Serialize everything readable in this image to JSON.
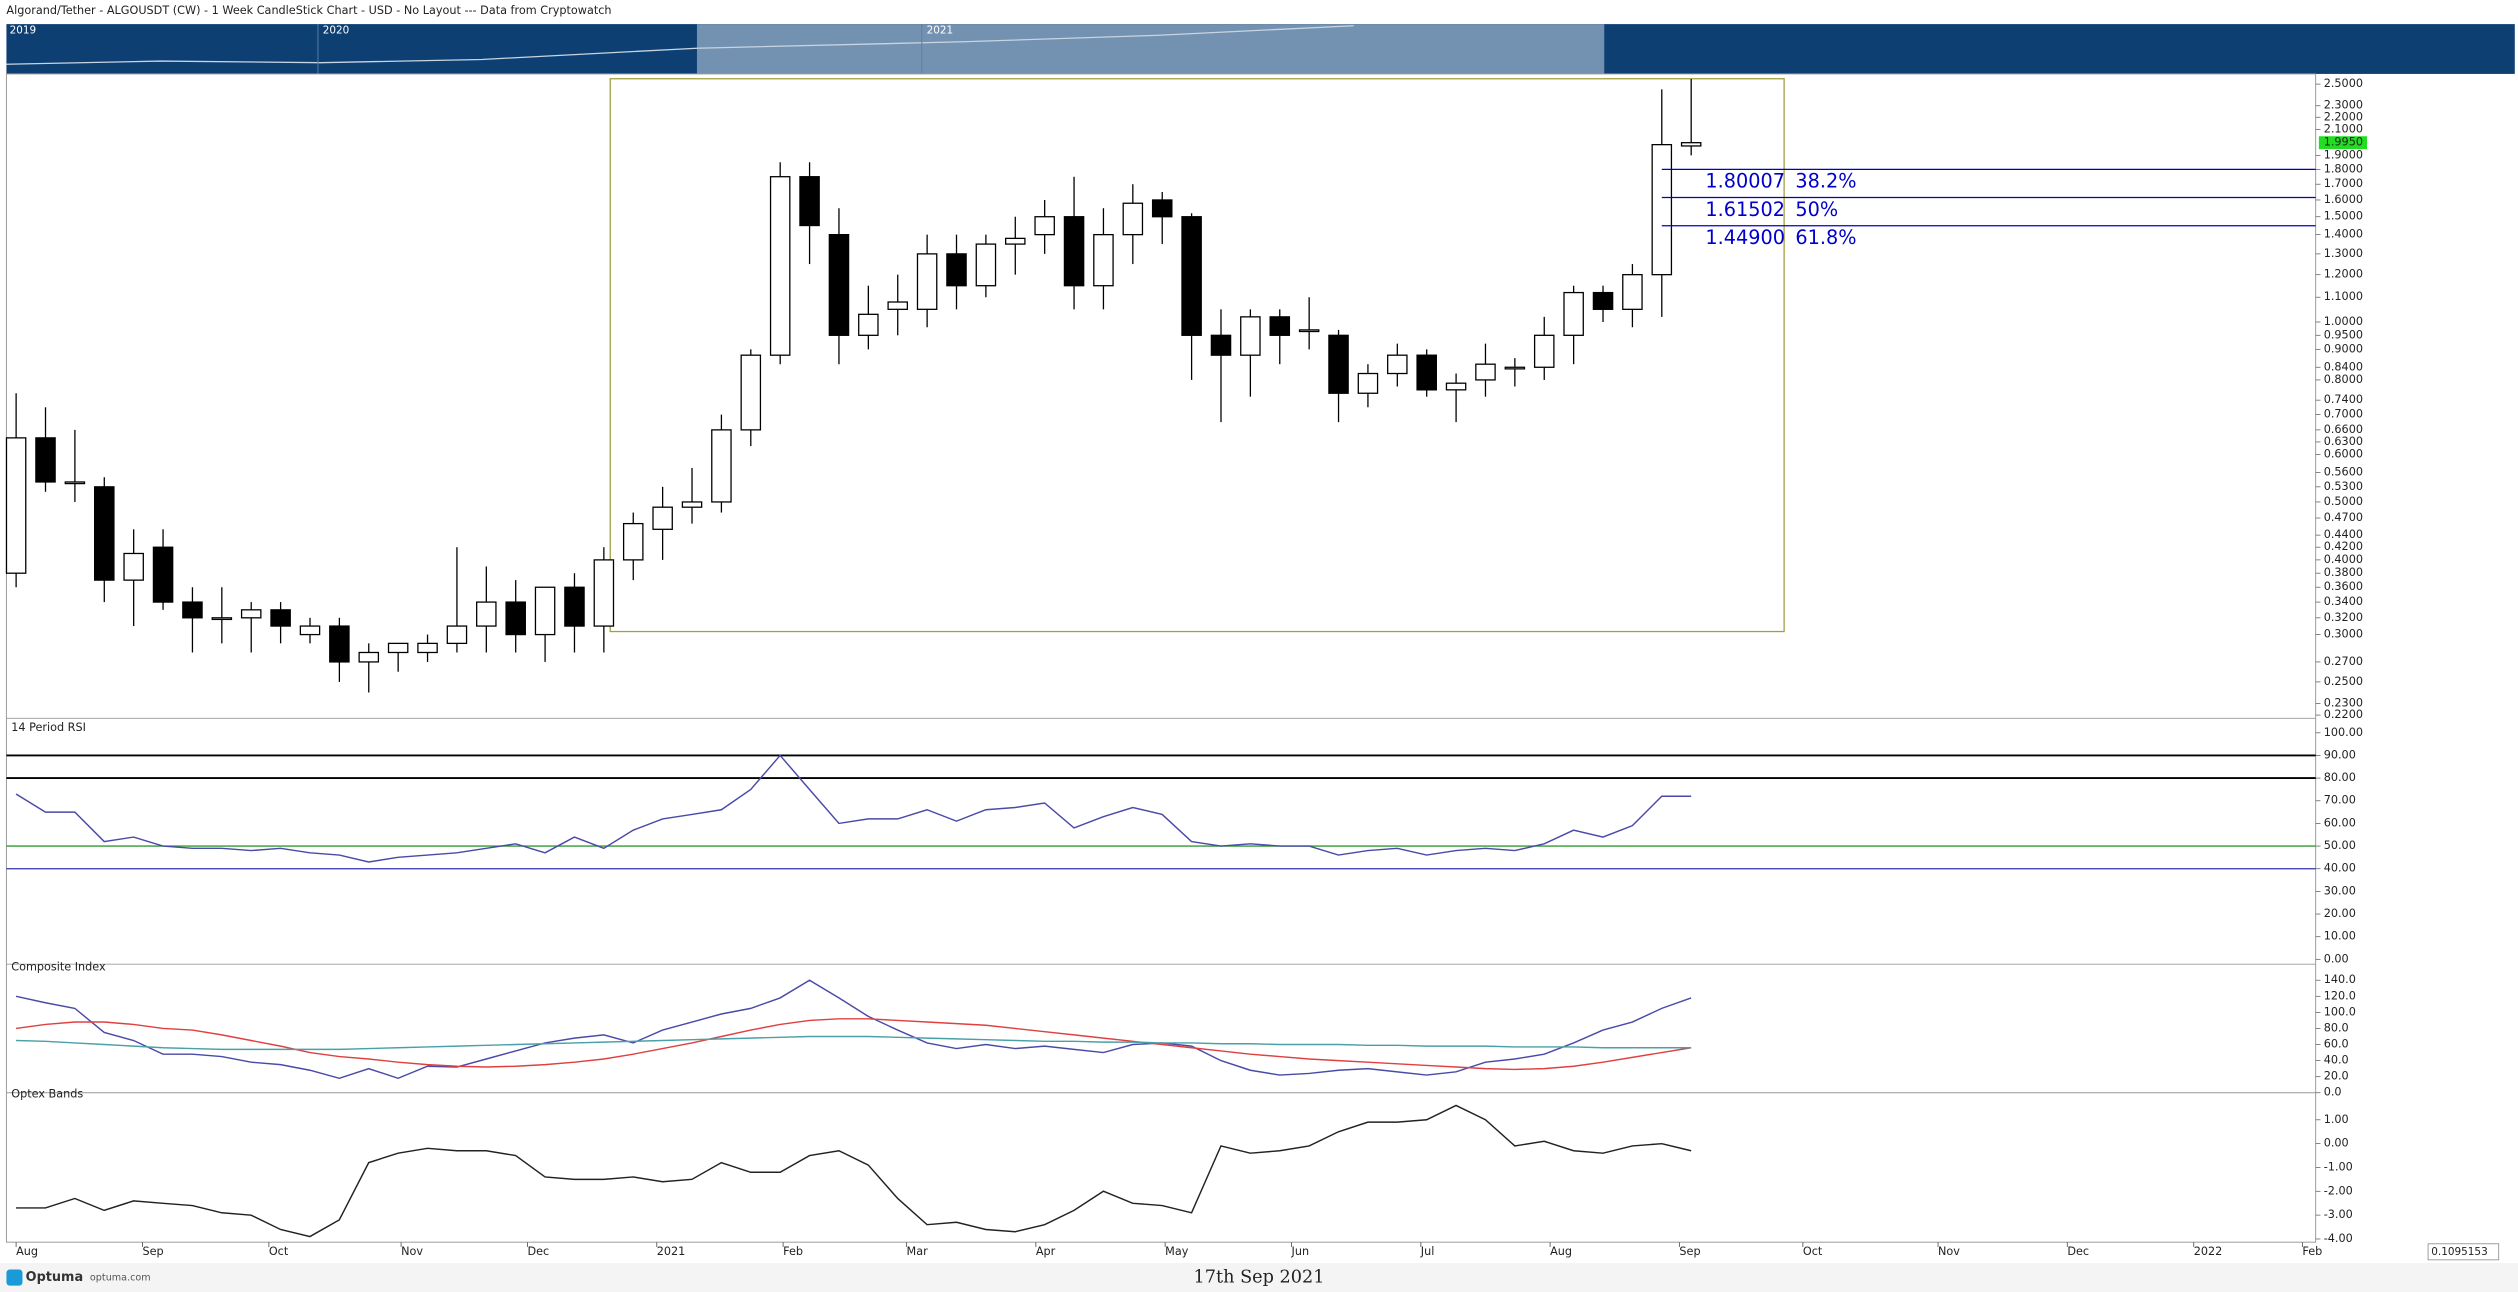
{
  "header": {
    "title": "Algorand/Tether - ALGOUSDT (CW) - 1 Week CandleStick Chart - USD - No Layout --- Data from Cryptowatch",
    "navigator_years": [
      "2019",
      "2020",
      "2021"
    ]
  },
  "chart_data": [
    {
      "type": "candlestick",
      "x": [
        0,
        1,
        2,
        3,
        4,
        5,
        6,
        7,
        8,
        9,
        10,
        11,
        12,
        13,
        14,
        15,
        16,
        17,
        18,
        19,
        20,
        21,
        22,
        23,
        24,
        25,
        26,
        27,
        28,
        29,
        30,
        31,
        32,
        33,
        34,
        35,
        36,
        37,
        38,
        39,
        40,
        41,
        42,
        43,
        44,
        45,
        46,
        47,
        48,
        49,
        50,
        51,
        52,
        53,
        54,
        55,
        56,
        57
      ],
      "open": [
        0.38,
        0.64,
        0.54,
        0.53,
        0.37,
        0.42,
        0.34,
        0.32,
        0.32,
        0.33,
        0.3,
        0.31,
        0.27,
        0.28,
        0.28,
        0.29,
        0.31,
        0.34,
        0.3,
        0.36,
        0.31,
        0.4,
        0.45,
        0.49,
        0.5,
        0.66,
        0.88,
        1.75,
        1.4,
        0.95,
        1.05,
        1.05,
        1.3,
        1.15,
        1.35,
        1.4,
        1.5,
        1.15,
        1.4,
        1.6,
        1.5,
        0.95,
        0.88,
        1.02,
        0.97,
        0.95,
        0.76,
        0.82,
        0.88,
        0.77,
        0.8,
        0.84,
        0.84,
        0.95,
        1.12,
        1.05,
        1.2,
        1.97
      ],
      "high": [
        0.76,
        0.72,
        0.66,
        0.55,
        0.45,
        0.45,
        0.36,
        0.36,
        0.34,
        0.34,
        0.32,
        0.32,
        0.29,
        0.29,
        0.3,
        0.42,
        0.39,
        0.37,
        0.36,
        0.38,
        0.42,
        0.48,
        0.53,
        0.57,
        0.7,
        0.9,
        1.85,
        1.85,
        1.55,
        1.15,
        1.2,
        1.4,
        1.4,
        1.4,
        1.5,
        1.6,
        1.75,
        1.55,
        1.7,
        1.65,
        1.52,
        1.05,
        1.05,
        1.05,
        1.1,
        0.97,
        0.85,
        0.92,
        0.9,
        0.82,
        0.92,
        0.87,
        1.02,
        1.15,
        1.15,
        1.25,
        2.45,
        2.55
      ],
      "low": [
        0.36,
        0.52,
        0.5,
        0.34,
        0.31,
        0.33,
        0.28,
        0.29,
        0.28,
        0.29,
        0.29,
        0.25,
        0.24,
        0.26,
        0.27,
        0.28,
        0.28,
        0.28,
        0.27,
        0.28,
        0.28,
        0.37,
        0.4,
        0.46,
        0.48,
        0.62,
        0.85,
        1.25,
        0.85,
        0.9,
        0.95,
        0.98,
        1.05,
        1.1,
        1.2,
        1.3,
        1.05,
        1.05,
        1.25,
        1.35,
        0.8,
        0.68,
        0.75,
        0.85,
        0.9,
        0.68,
        0.72,
        0.78,
        0.75,
        0.68,
        0.75,
        0.78,
        0.8,
        0.85,
        1.0,
        0.98,
        1.02,
        1.9
      ],
      "close": [
        0.64,
        0.54,
        0.54,
        0.37,
        0.41,
        0.34,
        0.32,
        0.32,
        0.33,
        0.31,
        0.31,
        0.27,
        0.28,
        0.29,
        0.29,
        0.31,
        0.34,
        0.3,
        0.36,
        0.31,
        0.4,
        0.46,
        0.49,
        0.5,
        0.66,
        0.88,
        1.75,
        1.45,
        0.95,
        1.03,
        1.08,
        1.3,
        1.15,
        1.35,
        1.38,
        1.5,
        1.15,
        1.4,
        1.58,
        1.5,
        0.95,
        0.88,
        1.02,
        0.95,
        0.97,
        0.76,
        0.82,
        0.88,
        0.77,
        0.79,
        0.85,
        0.84,
        0.95,
        1.12,
        1.05,
        1.2,
        1.98,
        1.995
      ],
      "up_color": "#ffffff",
      "down_color": "#000000",
      "ylim": [
        0.22,
        2.6
      ],
      "log_y": true,
      "yticks": [
        {
          "value": 2.5,
          "label": "2.5000"
        },
        {
          "value": 2.3,
          "label": "2.3000"
        },
        {
          "value": 2.2,
          "label": "2.2000"
        },
        {
          "value": 2.1,
          "label": "2.1000"
        },
        {
          "value": 1.9,
          "label": "1.9000"
        },
        {
          "value": 1.8,
          "label": "1.8000"
        },
        {
          "value": 1.7,
          "label": "1.7000"
        },
        {
          "value": 1.6,
          "label": "1.6000"
        },
        {
          "value": 1.5,
          "label": "1.5000"
        },
        {
          "value": 1.4,
          "label": "1.4000"
        },
        {
          "value": 1.3,
          "label": "1.3000"
        },
        {
          "value": 1.2,
          "label": "1.2000"
        },
        {
          "value": 1.1,
          "label": "1.1000"
        },
        {
          "value": 1.0,
          "label": "1.0000"
        },
        {
          "value": 0.95,
          "label": "0.9500"
        },
        {
          "value": 0.9,
          "label": "0.9000"
        },
        {
          "value": 0.84,
          "label": "0.8400"
        },
        {
          "value": 0.8,
          "label": "0.8000"
        },
        {
          "value": 0.74,
          "label": "0.7400"
        },
        {
          "value": 0.7,
          "label": "0.7000"
        },
        {
          "value": 0.66,
          "label": "0.6600"
        },
        {
          "value": 0.63,
          "label": "0.6300"
        },
        {
          "value": 0.6,
          "label": "0.6000"
        },
        {
          "value": 0.56,
          "label": "0.5600"
        },
        {
          "value": 0.53,
          "label": "0.5300"
        },
        {
          "value": 0.5,
          "label": "0.5000"
        },
        {
          "value": 0.47,
          "label": "0.4700"
        },
        {
          "value": 0.44,
          "label": "0.4400"
        },
        {
          "value": 0.42,
          "label": "0.4200"
        },
        {
          "value": 0.4,
          "label": "0.4000"
        },
        {
          "value": 0.38,
          "label": "0.3800"
        },
        {
          "value": 0.36,
          "label": "0.3600"
        },
        {
          "value": 0.34,
          "label": "0.3400"
        },
        {
          "value": 0.32,
          "label": "0.3200"
        },
        {
          "value": 0.3,
          "label": "0.3000"
        },
        {
          "value": 0.27,
          "label": "0.2700"
        },
        {
          "value": 0.25,
          "label": "0.2500"
        },
        {
          "value": 0.23,
          "label": "0.2300"
        },
        {
          "value": 0.22,
          "label": "0.2200"
        }
      ],
      "xlim": [
        -0.33,
        78.25
      ],
      "xticks": [
        {
          "value": 0,
          "label": "Aug"
        },
        {
          "value": 4.3,
          "label": "Sep"
        },
        {
          "value": 8.6,
          "label": "Oct"
        },
        {
          "value": 13.1,
          "label": "Nov"
        },
        {
          "value": 17.4,
          "label": "Dec"
        },
        {
          "value": 21.8,
          "label": "2021"
        },
        {
          "value": 26.1,
          "label": "Feb"
        },
        {
          "value": 30.3,
          "label": "Mar"
        },
        {
          "value": 34.7,
          "label": "Apr"
        },
        {
          "value": 39.1,
          "label": "May"
        },
        {
          "value": 43.4,
          "label": "Jun"
        },
        {
          "value": 47.8,
          "label": "Jul"
        },
        {
          "value": 52.2,
          "label": "Aug"
        },
        {
          "value": 56.6,
          "label": "Sep"
        },
        {
          "value": 60.8,
          "label": "Oct"
        },
        {
          "value": 65.4,
          "label": "Nov"
        },
        {
          "value": 69.8,
          "label": "Dec"
        },
        {
          "value": 74.1,
          "label": "2022"
        },
        {
          "value": 77.8,
          "label": "Feb"
        }
      ],
      "current_price": {
        "value": 1.995,
        "label": "1.9950"
      },
      "fib_levels": [
        {
          "value": 1.80007,
          "percent": "38.2%"
        },
        {
          "value": 1.61502,
          "percent": "50%"
        },
        {
          "value": 1.449,
          "label": "1.44900",
          "percent": "61.8%"
        }
      ],
      "fib_color": "#0000cc"
    },
    {
      "type": "line",
      "title": "14 Period RSI",
      "ylim": [
        0,
        100
      ],
      "yticks": [
        {
          "value": 100,
          "label": "100.00"
        },
        {
          "value": 90,
          "label": "90.00"
        },
        {
          "value": 80,
          "label": "80.00"
        },
        {
          "value": 70,
          "label": "70.00"
        },
        {
          "value": 60,
          "label": "60.00"
        },
        {
          "value": 50,
          "label": "50.00"
        },
        {
          "value": 40,
          "label": "40.00"
        },
        {
          "value": 30,
          "label": "30.00"
        },
        {
          "value": 20,
          "label": "20.00"
        },
        {
          "value": 10,
          "label": "10.00"
        },
        {
          "value": 0,
          "label": "0.00"
        }
      ],
      "levels": [
        {
          "value": 90,
          "color": "#000000"
        },
        {
          "value": 80,
          "color": "#000000"
        },
        {
          "value": 50,
          "color": "#339933"
        },
        {
          "value": 40,
          "color": "#3333aa"
        }
      ],
      "series": [
        {
          "color": "#4a4aa8",
          "values": [
            73,
            65,
            65,
            52,
            54,
            50,
            49,
            49,
            48,
            49,
            47,
            46,
            43,
            45,
            46,
            47,
            49,
            51,
            47,
            54,
            49,
            57,
            62,
            64,
            66,
            75,
            90,
            75,
            60,
            62,
            62,
            66,
            61,
            66,
            67,
            69,
            58,
            63,
            67,
            64,
            52,
            50,
            51,
            50,
            50,
            46,
            48,
            49,
            46,
            48,
            49,
            48,
            51,
            57,
            54,
            59,
            72,
            72
          ]
        }
      ]
    },
    {
      "type": "line",
      "title": "Composite Index",
      "ylim": [
        0,
        150
      ],
      "yticks": [
        {
          "value": 140,
          "label": "140.0"
        },
        {
          "value": 120,
          "label": "120.0"
        },
        {
          "value": 100,
          "label": "100.0"
        },
        {
          "value": 80,
          "label": "80.0"
        },
        {
          "value": 60,
          "label": "60.0"
        },
        {
          "value": 40,
          "label": "40.0"
        },
        {
          "value": 20,
          "label": "20.0"
        },
        {
          "value": 0,
          "label": "0.0"
        }
      ],
      "series": [
        {
          "color": "#4a4aa8",
          "values": [
            120,
            112,
            105,
            75,
            65,
            48,
            48,
            45,
            38,
            35,
            28,
            18,
            30,
            18,
            33,
            32,
            42,
            52,
            62,
            68,
            72,
            62,
            78,
            88,
            98,
            105,
            118,
            140,
            118,
            95,
            78,
            62,
            55,
            60,
            55,
            58,
            54,
            50,
            60,
            62,
            58,
            40,
            28,
            22,
            24,
            28,
            30,
            26,
            22,
            26,
            38,
            42,
            48,
            62,
            78,
            88,
            105,
            118
          ]
        },
        {
          "color": "#e04040",
          "values": [
            80,
            85,
            88,
            88,
            85,
            80,
            78,
            72,
            65,
            58,
            50,
            45,
            42,
            38,
            35,
            33,
            32,
            33,
            35,
            38,
            42,
            48,
            55,
            62,
            70,
            78,
            85,
            90,
            92,
            92,
            90,
            88,
            86,
            84,
            80,
            76,
            72,
            68,
            64,
            60,
            56,
            52,
            48,
            45,
            42,
            40,
            38,
            36,
            34,
            32,
            30,
            29,
            30,
            33,
            38,
            44,
            50,
            56
          ]
        },
        {
          "color": "#4aa0a8",
          "values": [
            65,
            64,
            62,
            60,
            58,
            56,
            55,
            54,
            54,
            54,
            54,
            54,
            55,
            56,
            57,
            58,
            59,
            60,
            61,
            62,
            63,
            64,
            65,
            66,
            67,
            68,
            69,
            70,
            70,
            70,
            69,
            68,
            67,
            66,
            65,
            64,
            64,
            63,
            63,
            62,
            62,
            61,
            61,
            60,
            60,
            60,
            59,
            59,
            58,
            58,
            58,
            57,
            57,
            57,
            56,
            56,
            56,
            56
          ]
        }
      ]
    },
    {
      "type": "line",
      "title": "Optex Bands",
      "ylim": [
        -4,
        2
      ],
      "yticks": [
        {
          "value": 1,
          "label": "1.00"
        },
        {
          "value": 0,
          "label": "0.00"
        },
        {
          "value": -1,
          "label": "-1.00"
        },
        {
          "value": -2,
          "label": "-2.00"
        },
        {
          "value": -3,
          "label": "-3.00"
        },
        {
          "value": -4,
          "label": "-4.00"
        }
      ],
      "series": [
        {
          "color": "#222222",
          "values": [
            -2.7,
            -2.7,
            -2.3,
            -2.8,
            -2.4,
            -2.5,
            -2.6,
            -2.9,
            -3.0,
            -3.6,
            -3.9,
            -3.2,
            -0.8,
            -0.4,
            -0.2,
            -0.3,
            -0.3,
            -0.5,
            -1.4,
            -1.5,
            -1.5,
            -1.4,
            -1.6,
            -1.5,
            -0.8,
            -1.2,
            -1.2,
            -0.5,
            -0.3,
            -0.9,
            -2.3,
            -3.4,
            -3.3,
            -3.6,
            -3.7,
            -3.4,
            -2.8,
            -2.0,
            -2.5,
            -2.6,
            -2.9,
            -0.1,
            -0.4,
            -0.3,
            -0.1,
            0.5,
            0.9,
            0.9,
            1.0,
            1.6,
            1.0,
            -0.1,
            0.1,
            -0.3,
            -0.4,
            -0.1,
            0.0,
            -0.3
          ]
        }
      ]
    }
  ],
  "footer": {
    "brand": "Optuma",
    "site": "optuma.com",
    "date": "17th Sep 2021",
    "cursor_value": "0.1095153"
  }
}
